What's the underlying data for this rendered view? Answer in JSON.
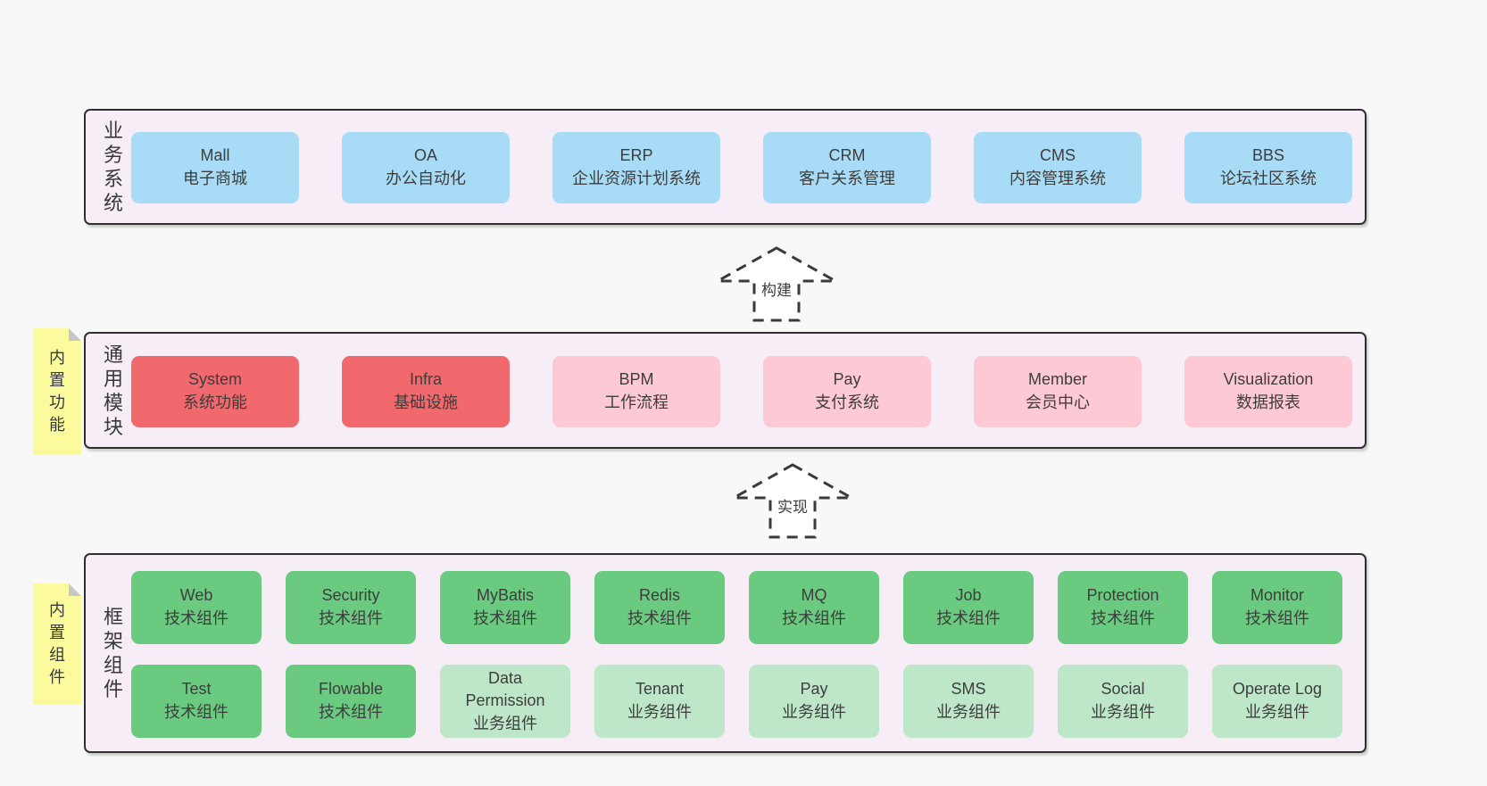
{
  "colors": {
    "page_bg": "#f8f8f8",
    "panel_bg": "#f7edf6",
    "panel_border": "#2f2f2f",
    "blue": "#a8dbf5",
    "red": "#f1696c",
    "pink": "#fcc9d4",
    "green": "#6aca80",
    "green_light": "#bde7c8",
    "tag_yellow": "#fbfb9e",
    "tag_fold": "#c6c6c6",
    "text": "#3d3d3d"
  },
  "layers": {
    "business": {
      "label": "业务系统",
      "boxes": [
        {
          "title": "Mall",
          "subtitle": "电子商城",
          "variant": "blue"
        },
        {
          "title": "OA",
          "subtitle": "办公自动化",
          "variant": "blue"
        },
        {
          "title": "ERP",
          "subtitle": "企业资源计划系统",
          "variant": "blue"
        },
        {
          "title": "CRM",
          "subtitle": "客户关系管理",
          "variant": "blue"
        },
        {
          "title": "CMS",
          "subtitle": "内容管理系统",
          "variant": "blue"
        },
        {
          "title": "BBS",
          "subtitle": "论坛社区系统",
          "variant": "blue"
        }
      ]
    },
    "modules": {
      "label": "通用模块",
      "tag": "内置功能",
      "boxes": [
        {
          "title": "System",
          "subtitle": "系统功能",
          "variant": "red"
        },
        {
          "title": "Infra",
          "subtitle": "基础设施",
          "variant": "red"
        },
        {
          "title": "BPM",
          "subtitle": "工作流程",
          "variant": "pink"
        },
        {
          "title": "Pay",
          "subtitle": "支付系统",
          "variant": "pink"
        },
        {
          "title": "Member",
          "subtitle": "会员中心",
          "variant": "pink"
        },
        {
          "title": "Visualization",
          "subtitle": "数据报表",
          "variant": "pink"
        }
      ]
    },
    "components": {
      "label": "框架组件",
      "tag": "内置组件",
      "rows": [
        [
          {
            "title": "Web",
            "subtitle": "技术组件",
            "variant": "green"
          },
          {
            "title": "Security",
            "subtitle": "技术组件",
            "variant": "green"
          },
          {
            "title": "MyBatis",
            "subtitle": "技术组件",
            "variant": "green"
          },
          {
            "title": "Redis",
            "subtitle": "技术组件",
            "variant": "green"
          },
          {
            "title": "MQ",
            "subtitle": "技术组件",
            "variant": "green"
          },
          {
            "title": "Job",
            "subtitle": "技术组件",
            "variant": "green"
          },
          {
            "title": "Protection",
            "subtitle": "技术组件",
            "variant": "green"
          },
          {
            "title": "Monitor",
            "subtitle": "技术组件",
            "variant": "green"
          }
        ],
        [
          {
            "title": "Test",
            "subtitle": "技术组件",
            "variant": "green"
          },
          {
            "title": "Flowable",
            "subtitle": "技术组件",
            "variant": "green"
          },
          {
            "title": "Data Permission",
            "subtitle": "业务组件",
            "variant": "green_light"
          },
          {
            "title": "Tenant",
            "subtitle": "业务组件",
            "variant": "green_light"
          },
          {
            "title": "Pay",
            "subtitle": "业务组件",
            "variant": "green_light"
          },
          {
            "title": "SMS",
            "subtitle": "业务组件",
            "variant": "green_light"
          },
          {
            "title": "Social",
            "subtitle": "业务组件",
            "variant": "green_light"
          },
          {
            "title": "Operate Log",
            "subtitle": "业务组件",
            "variant": "green_light"
          }
        ]
      ]
    }
  },
  "arrows": {
    "build": {
      "label": "构建"
    },
    "implement": {
      "label": "实现"
    }
  }
}
